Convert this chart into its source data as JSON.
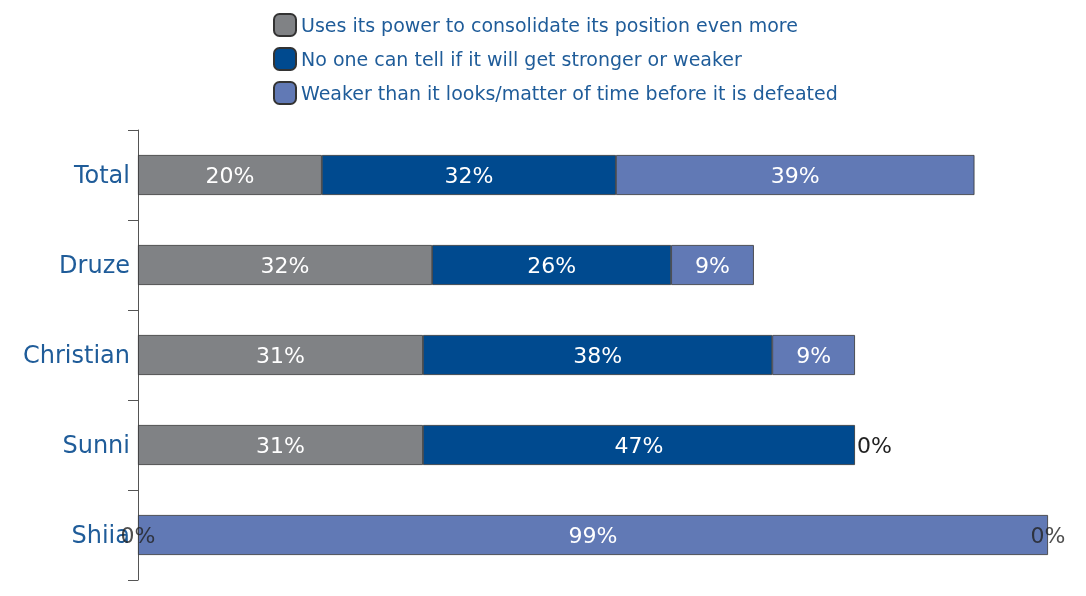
{
  "chart_data": {
    "type": "bar",
    "orientation": "horizontal",
    "stacked": true,
    "legend": "top",
    "tick_labels": "y",
    "grid": false,
    "categories": [
      "Total",
      "Druze",
      "Christian",
      "Sunni",
      "Shiia"
    ],
    "series": [
      {
        "name": "Uses its power to consolidate its position even more",
        "color": "#808285",
        "values": [
          20,
          32,
          31,
          31,
          0
        ],
        "value_labels": [
          "20%",
          "32%",
          "31%",
          "31%",
          null
        ]
      },
      {
        "name": "No one can tell if it will get stronger or weaker",
        "color": "#004a8f",
        "values": [
          32,
          26,
          38,
          47,
          0
        ],
        "value_labels": [
          "32%",
          "26%",
          "38%",
          "47%",
          null
        ]
      },
      {
        "name": "Weaker than it looks/matter of time before it is defeated",
        "color": "#6179b5",
        "values": [
          39,
          9,
          9,
          0,
          99
        ],
        "value_labels": [
          "39%",
          "9%",
          "9%",
          "0%",
          "99%"
        ]
      }
    ],
    "annotations": [
      {
        "text": "0%",
        "x": 0,
        "y": "Shiia"
      },
      {
        "text": "0%",
        "x": 99,
        "y": "Shiia"
      }
    ]
  }
}
